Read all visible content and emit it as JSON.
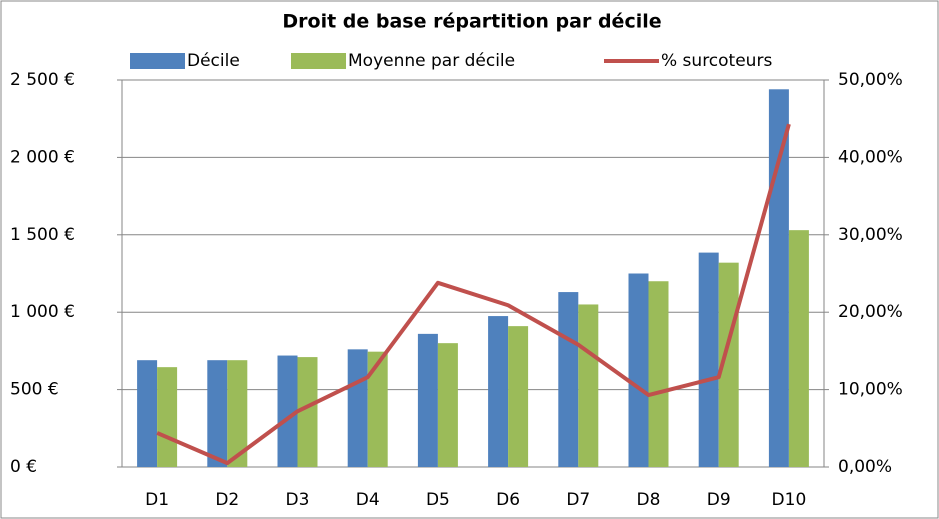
{
  "chart_data": {
    "type": "bar_line",
    "title": "Droit de base répartition par décile",
    "categories": [
      "D1",
      "D2",
      "D3",
      "D4",
      "D5",
      "D6",
      "D7",
      "D8",
      "D9",
      "D10"
    ],
    "series": [
      {
        "name": "Décile",
        "color": "#4f81bd",
        "values": [
          690,
          690,
          720,
          760,
          860,
          975,
          1130,
          1250,
          1385,
          2440
        ]
      },
      {
        "name": "Moyenne par décile",
        "color": "#9bbb59",
        "values": [
          645,
          690,
          710,
          745,
          800,
          910,
          1050,
          1200,
          1320,
          1530
        ]
      },
      {
        "name": "% surcoteurs",
        "color": "#c0504d",
        "axis": "y2",
        "values": [
          4.4,
          0.5,
          7.2,
          11.6,
          23.8,
          20.9,
          15.8,
          9.3,
          11.6,
          44.3
        ]
      }
    ],
    "ylim": [
      0,
      2500
    ],
    "yticks": [
      {
        "value": 0,
        "label": "0 €"
      },
      {
        "value": 500,
        "label": "500 €"
      },
      {
        "value": 1000,
        "label": "1 000 €"
      },
      {
        "value": 1500,
        "label": "1 500 €"
      },
      {
        "value": 2000,
        "label": "2 000 €"
      },
      {
        "value": 2500,
        "label": "2 500 €"
      }
    ],
    "y2lim": [
      0,
      50
    ],
    "y2ticks": [
      {
        "value": 0,
        "label": "0,00%"
      },
      {
        "value": 10,
        "label": "10,00%"
      },
      {
        "value": 20,
        "label": "20,00%"
      },
      {
        "value": 30,
        "label": "30,00%"
      },
      {
        "value": 40,
        "label": "40,00%"
      },
      {
        "value": 50,
        "label": "50,00%"
      }
    ],
    "grid": true,
    "legend": "top"
  }
}
